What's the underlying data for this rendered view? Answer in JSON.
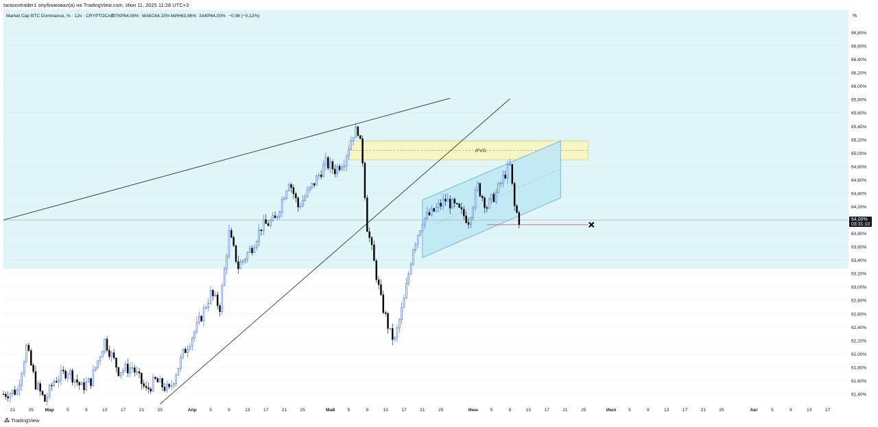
{
  "header": {
    "publish_info": "tarasovtrader1 опубликовал(а) на TradingView.com, Июн 11, 2025 11:28 UTC+3"
  },
  "chart_data": {
    "type": "candlestick",
    "symbol_line": "Market Cap BTC Dominance, % · 12ч · CRYPTOCAP",
    "ohlc_line": {
      "open": "ОТКР64,08%",
      "high": "МАКС64,15%",
      "low": "МИН63,96%",
      "close": "ЗАКР64,00%",
      "change": "−0,08 (−0,12%)"
    },
    "y_unit_label": "%",
    "ylim": [
      61.2,
      67.0
    ],
    "y_ticks": [
      61.4,
      61.6,
      61.8,
      62.0,
      62.2,
      62.4,
      62.6,
      62.8,
      63.0,
      63.2,
      63.4,
      63.6,
      63.8,
      64.0,
      64.2,
      64.4,
      64.6,
      64.8,
      65.0,
      65.2,
      65.4,
      65.6,
      65.8,
      66.0,
      66.2,
      66.4,
      66.6,
      66.8
    ],
    "y_tick_labels": [
      "61,40%",
      "61,60%",
      "61,80%",
      "62,00%",
      "62,20%",
      "62,40%",
      "62,60%",
      "62,80%",
      "63,00%",
      "63,20%",
      "63,40%",
      "63,60%",
      "63,80%",
      "64,00%",
      "64,20%",
      "64,40%",
      "64,60%",
      "64,80%",
      "65,00%",
      "65,20%",
      "65,40%",
      "65,60%",
      "65,80%",
      "66,00%",
      "66,20%",
      "66,40%",
      "66,60%",
      "66,80%"
    ],
    "x_range": [
      "2025-02-19",
      "2025-08-19"
    ],
    "x_ticks": [
      {
        "date": "2025-02-21",
        "label": "21"
      },
      {
        "date": "2025-02-25",
        "label": "25"
      },
      {
        "date": "2025-03-01",
        "label": "Мар"
      },
      {
        "date": "2025-03-05",
        "label": "5"
      },
      {
        "date": "2025-03-09",
        "label": "9"
      },
      {
        "date": "2025-03-13",
        "label": "13"
      },
      {
        "date": "2025-03-17",
        "label": "17"
      },
      {
        "date": "2025-03-21",
        "label": "21"
      },
      {
        "date": "2025-03-25",
        "label": "25"
      },
      {
        "date": "2025-04-01",
        "label": "Апр"
      },
      {
        "date": "2025-04-05",
        "label": "5"
      },
      {
        "date": "2025-04-09",
        "label": "9"
      },
      {
        "date": "2025-04-13",
        "label": "13"
      },
      {
        "date": "2025-04-17",
        "label": "17"
      },
      {
        "date": "2025-04-21",
        "label": "21"
      },
      {
        "date": "2025-04-25",
        "label": "25"
      },
      {
        "date": "2025-05-01",
        "label": "Май"
      },
      {
        "date": "2025-05-05",
        "label": "5"
      },
      {
        "date": "2025-05-09",
        "label": "9"
      },
      {
        "date": "2025-05-13",
        "label": "13"
      },
      {
        "date": "2025-05-17",
        "label": "17"
      },
      {
        "date": "2025-05-21",
        "label": "21"
      },
      {
        "date": "2025-05-25",
        "label": "25"
      },
      {
        "date": "2025-06-01",
        "label": "Июн"
      },
      {
        "date": "2025-06-05",
        "label": "5"
      },
      {
        "date": "2025-06-09",
        "label": "9"
      },
      {
        "date": "2025-06-13",
        "label": "13"
      },
      {
        "date": "2025-06-17",
        "label": "17"
      },
      {
        "date": "2025-06-21",
        "label": "21"
      },
      {
        "date": "2025-06-25",
        "label": "25"
      },
      {
        "date": "2025-07-01",
        "label": "Июл"
      },
      {
        "date": "2025-07-05",
        "label": "5"
      },
      {
        "date": "2025-07-09",
        "label": "9"
      },
      {
        "date": "2025-07-13",
        "label": "13"
      },
      {
        "date": "2025-07-17",
        "label": "17"
      },
      {
        "date": "2025-07-21",
        "label": "21"
      },
      {
        "date": "2025-07-25",
        "label": "25"
      },
      {
        "date": "2025-08-01",
        "label": "Авг"
      },
      {
        "date": "2025-08-05",
        "label": "5"
      },
      {
        "date": "2025-08-09",
        "label": "9"
      },
      {
        "date": "2025-08-13",
        "label": "13"
      },
      {
        "date": "2025-08-17",
        "label": "17"
      }
    ],
    "price_levels": [
      {
        "date": "2025-02-19",
        "value": 61.4
      },
      {
        "date": "2025-02-22",
        "value": 61.45
      },
      {
        "date": "2025-02-24",
        "value": 62.1
      },
      {
        "date": "2025-02-26",
        "value": 61.55
      },
      {
        "date": "2025-02-28",
        "value": 61.3
      },
      {
        "date": "2025-03-02",
        "value": 61.6
      },
      {
        "date": "2025-03-05",
        "value": 61.75
      },
      {
        "date": "2025-03-08",
        "value": 61.5
      },
      {
        "date": "2025-03-10",
        "value": 61.6
      },
      {
        "date": "2025-03-13",
        "value": 62.2
      },
      {
        "date": "2025-03-16",
        "value": 61.75
      },
      {
        "date": "2025-03-19",
        "value": 61.8
      },
      {
        "date": "2025-03-22",
        "value": 61.45
      },
      {
        "date": "2025-03-24",
        "value": 61.6
      },
      {
        "date": "2025-03-27",
        "value": 61.45
      },
      {
        "date": "2025-03-30",
        "value": 62.0
      },
      {
        "date": "2025-04-02",
        "value": 62.4
      },
      {
        "date": "2025-04-05",
        "value": 62.9
      },
      {
        "date": "2025-04-07",
        "value": 62.7
      },
      {
        "date": "2025-04-09",
        "value": 63.8
      },
      {
        "date": "2025-04-11",
        "value": 63.3
      },
      {
        "date": "2025-04-14",
        "value": 63.6
      },
      {
        "date": "2025-04-16",
        "value": 63.9
      },
      {
        "date": "2025-04-19",
        "value": 64.0
      },
      {
        "date": "2025-04-22",
        "value": 64.6
      },
      {
        "date": "2025-04-24",
        "value": 64.2
      },
      {
        "date": "2025-04-27",
        "value": 64.5
      },
      {
        "date": "2025-04-30",
        "value": 64.85
      },
      {
        "date": "2025-05-02",
        "value": 64.75
      },
      {
        "date": "2025-05-04",
        "value": 64.9
      },
      {
        "date": "2025-05-06",
        "value": 65.3
      },
      {
        "date": "2025-05-07",
        "value": 65.35
      },
      {
        "date": "2025-05-08",
        "value": 64.9
      },
      {
        "date": "2025-05-09",
        "value": 63.9
      },
      {
        "date": "2025-05-10",
        "value": 63.55
      },
      {
        "date": "2025-05-12",
        "value": 62.8
      },
      {
        "date": "2025-05-14",
        "value": 62.3
      },
      {
        "date": "2025-05-15",
        "value": 62.2
      },
      {
        "date": "2025-05-17",
        "value": 62.8
      },
      {
        "date": "2025-05-19",
        "value": 63.6
      },
      {
        "date": "2025-05-21",
        "value": 64.0
      },
      {
        "date": "2025-05-23",
        "value": 64.1
      },
      {
        "date": "2025-05-26",
        "value": 64.3
      },
      {
        "date": "2025-05-28",
        "value": 64.2
      },
      {
        "date": "2025-05-31",
        "value": 64.0
      },
      {
        "date": "2025-06-02",
        "value": 64.5
      },
      {
        "date": "2025-06-04",
        "value": 64.2
      },
      {
        "date": "2025-06-06",
        "value": 64.4
      },
      {
        "date": "2025-06-08",
        "value": 64.7
      },
      {
        "date": "2025-06-09",
        "value": 64.8
      },
      {
        "date": "2025-06-10",
        "value": 64.2
      },
      {
        "date": "2025-06-11",
        "value": 64.0
      }
    ],
    "annotations": {
      "label_ifvg": "iFVG",
      "last_price_label": "64,00%",
      "countdown_label": "03:31:10"
    },
    "colors": {
      "up": "#2962ff",
      "down": "#000000",
      "zone_fill": "#dff5f7",
      "fvg_fill": "#f6f5c4",
      "channel_fill": "#bde8f4",
      "target_line": "#e0507a",
      "price_line": "#9aa3b5",
      "trend_line": "#131722",
      "price_tag": "#131722"
    },
    "icons": [
      "x-target-icon",
      "tradingview-logo-icon"
    ]
  },
  "footer": {
    "brand": "TradingView"
  }
}
